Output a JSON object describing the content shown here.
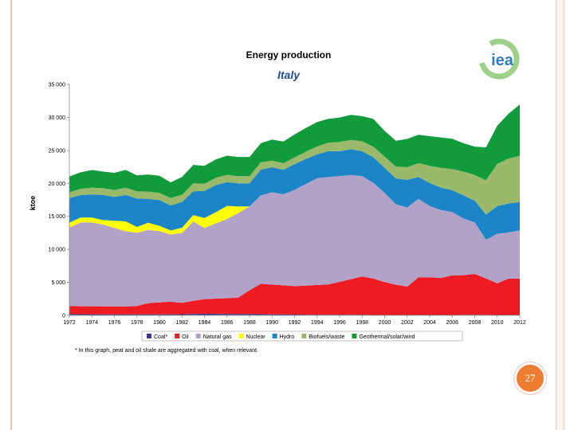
{
  "slide": {
    "number": "27"
  },
  "logo": {
    "text": "iea"
  },
  "chart_data": {
    "type": "area",
    "stacked": true,
    "title": "Energy production",
    "subtitle": "Italy",
    "xlabel": "",
    "ylabel": "ktoe",
    "ylim": [
      0,
      35000
    ],
    "yticks": [
      0,
      5000,
      10000,
      15000,
      20000,
      25000,
      30000,
      35000
    ],
    "ytick_labels": [
      "0",
      "5 000",
      "10 000",
      "15 000",
      "20 000",
      "25 000",
      "30 000",
      "35 000"
    ],
    "xtick_labels": [
      "1972",
      "1974",
      "1976",
      "1978",
      "1980",
      "1982",
      "1984",
      "1986",
      "1988",
      "1990",
      "1992",
      "1994",
      "1996",
      "1998",
      "2000",
      "2002",
      "2004",
      "2006",
      "2008",
      "2010",
      "2012"
    ],
    "footnote": "* In this graph, peat and oil shale are aggregated with coal, when relevant.",
    "x": [
      1972,
      1973,
      1974,
      1975,
      1976,
      1977,
      1978,
      1979,
      1980,
      1981,
      1982,
      1983,
      1984,
      1985,
      1986,
      1987,
      1988,
      1989,
      1990,
      1991,
      1992,
      1993,
      1994,
      1995,
      1996,
      1997,
      1998,
      1999,
      2000,
      2001,
      2002,
      2003,
      2004,
      2005,
      2006,
      2007,
      2008,
      2009,
      2010,
      2011,
      2012
    ],
    "series": [
      {
        "name": "Coal*",
        "color": "#3b3a8c",
        "values": [
          200,
          180,
          170,
          160,
          150,
          140,
          150,
          150,
          160,
          160,
          180,
          200,
          250,
          230,
          200,
          200,
          200,
          180,
          150,
          150,
          120,
          100,
          100,
          80,
          80,
          80,
          80,
          60,
          50,
          50,
          50,
          60,
          60,
          60,
          60,
          80,
          80,
          70,
          60,
          60,
          60
        ]
      },
      {
        "name": "Oil",
        "color": "#ee1b22",
        "values": [
          1200,
          1200,
          1200,
          1200,
          1200,
          1200,
          1250,
          1700,
          1800,
          1900,
          1700,
          2000,
          2200,
          2300,
          2400,
          2500,
          3600,
          4600,
          4500,
          4400,
          4300,
          4400,
          4500,
          4600,
          5000,
          5400,
          5800,
          5500,
          5000,
          4600,
          4300,
          5700,
          5700,
          5600,
          6000,
          6000,
          6200,
          5500,
          4800,
          5500,
          5500
        ]
      },
      {
        "name": "Natural gas",
        "color": "#b3a2c8",
        "values": [
          11900,
          12700,
          12700,
          12400,
          11900,
          11400,
          11100,
          11100,
          10800,
          10200,
          10600,
          12000,
          10800,
          11400,
          12000,
          12800,
          12700,
          13400,
          14000,
          13800,
          14600,
          15400,
          16200,
          16300,
          16000,
          15800,
          15200,
          14500,
          13500,
          12200,
          12000,
          11900,
          10800,
          10300,
          9600,
          8600,
          7800,
          5900,
          7500,
          7000,
          7300
        ]
      },
      {
        "name": "Nuclear",
        "color": "#ffff00",
        "values": [
          750,
          750,
          760,
          680,
          1100,
          1500,
          900,
          1100,
          800,
          600,
          800,
          1000,
          1500,
          1700,
          2000,
          1000,
          0,
          0,
          0,
          0,
          0,
          0,
          0,
          0,
          0,
          0,
          0,
          0,
          0,
          0,
          0,
          0,
          0,
          0,
          0,
          0,
          0,
          0,
          0,
          0,
          0
        ]
      },
      {
        "name": "Hydro",
        "color": "#1b85c7",
        "values": [
          3700,
          3400,
          3500,
          3800,
          3600,
          4000,
          4300,
          3600,
          3900,
          3800,
          3900,
          3600,
          4100,
          4100,
          3600,
          3500,
          3500,
          3900,
          3800,
          3700,
          3900,
          3800,
          3600,
          3900,
          3800,
          3900,
          3800,
          3900,
          3800,
          3900,
          4200,
          3300,
          3500,
          3400,
          3300,
          3500,
          3300,
          3800,
          4200,
          4400,
          4300
        ]
      },
      {
        "name": "Biofuels/waste",
        "color": "#9bb96b",
        "values": [
          900,
          950,
          1000,
          1050,
          1050,
          1100,
          1100,
          1100,
          1100,
          1100,
          1100,
          1200,
          1100,
          1100,
          1100,
          1100,
          1100,
          1100,
          1000,
          1000,
          1000,
          1100,
          1200,
          1300,
          1400,
          1400,
          1500,
          1600,
          1700,
          1800,
          1900,
          2100,
          2600,
          3000,
          3200,
          3600,
          3900,
          5200,
          6400,
          6800,
          7000
        ]
      },
      {
        "name": "Geothermal/solar/wind",
        "color": "#129b3b",
        "values": [
          2400,
          2500,
          2700,
          2500,
          2600,
          2700,
          2400,
          2600,
          2600,
          2400,
          2700,
          2800,
          2700,
          2800,
          2900,
          2900,
          2900,
          2900,
          3200,
          3300,
          3500,
          3600,
          3700,
          3600,
          3700,
          3800,
          3800,
          4200,
          3900,
          3900,
          4300,
          4300,
          4500,
          4600,
          4600,
          4300,
          4300,
          5000,
          5800,
          6800,
          7800
        ]
      }
    ]
  }
}
